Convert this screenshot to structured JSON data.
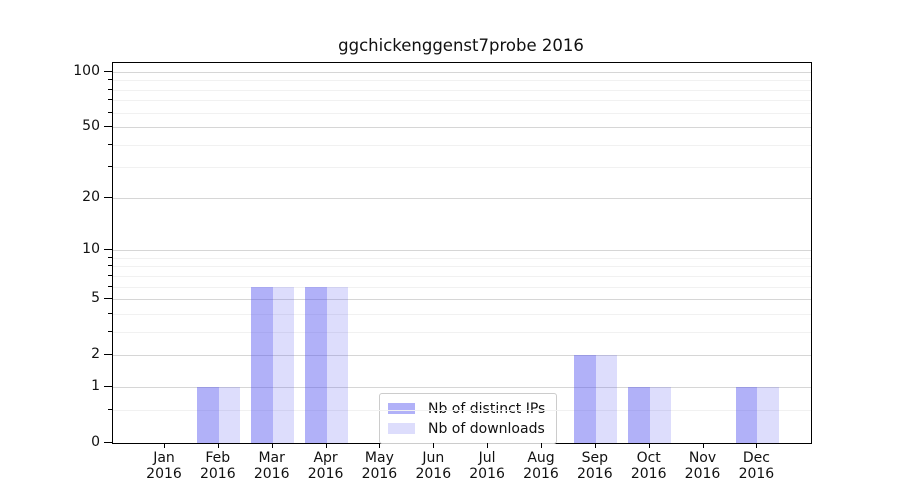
{
  "chart_data": {
    "type": "bar",
    "title": "ggchickenggenst7probe 2016",
    "categories": [
      "Jan",
      "Feb",
      "Mar",
      "Apr",
      "May",
      "Jun",
      "Jul",
      "Aug",
      "Sep",
      "Oct",
      "Nov",
      "Dec"
    ],
    "category_year": "2016",
    "series": [
      {
        "name": "Nb of distinct IPs",
        "color": "rgba(83,83,239,0.45)",
        "values": [
          0,
          1,
          6,
          6,
          0,
          0,
          0,
          0,
          2,
          1,
          0,
          1
        ]
      },
      {
        "name": "Nb of downloads",
        "color": "rgba(83,83,239,0.20)",
        "values": [
          0,
          1,
          6,
          6,
          0,
          0,
          0,
          0,
          2,
          1,
          0,
          1
        ]
      }
    ],
    "y_axis": {
      "scale": "log10(1+v)",
      "lim": [
        0,
        100
      ],
      "ticks": [
        0,
        1,
        2,
        5,
        10,
        20,
        50,
        100
      ],
      "minor_ticks": [
        0.5,
        3,
        4,
        6,
        7,
        8,
        9,
        30,
        40,
        60,
        70,
        80,
        90
      ]
    },
    "legend": {
      "position": "lower center"
    },
    "colors": {
      "grid_major": "#d6d6d6",
      "grid_minor": "#f1f1f1",
      "axis": "#000000",
      "text": "#111111",
      "background": "#ffffff"
    }
  }
}
